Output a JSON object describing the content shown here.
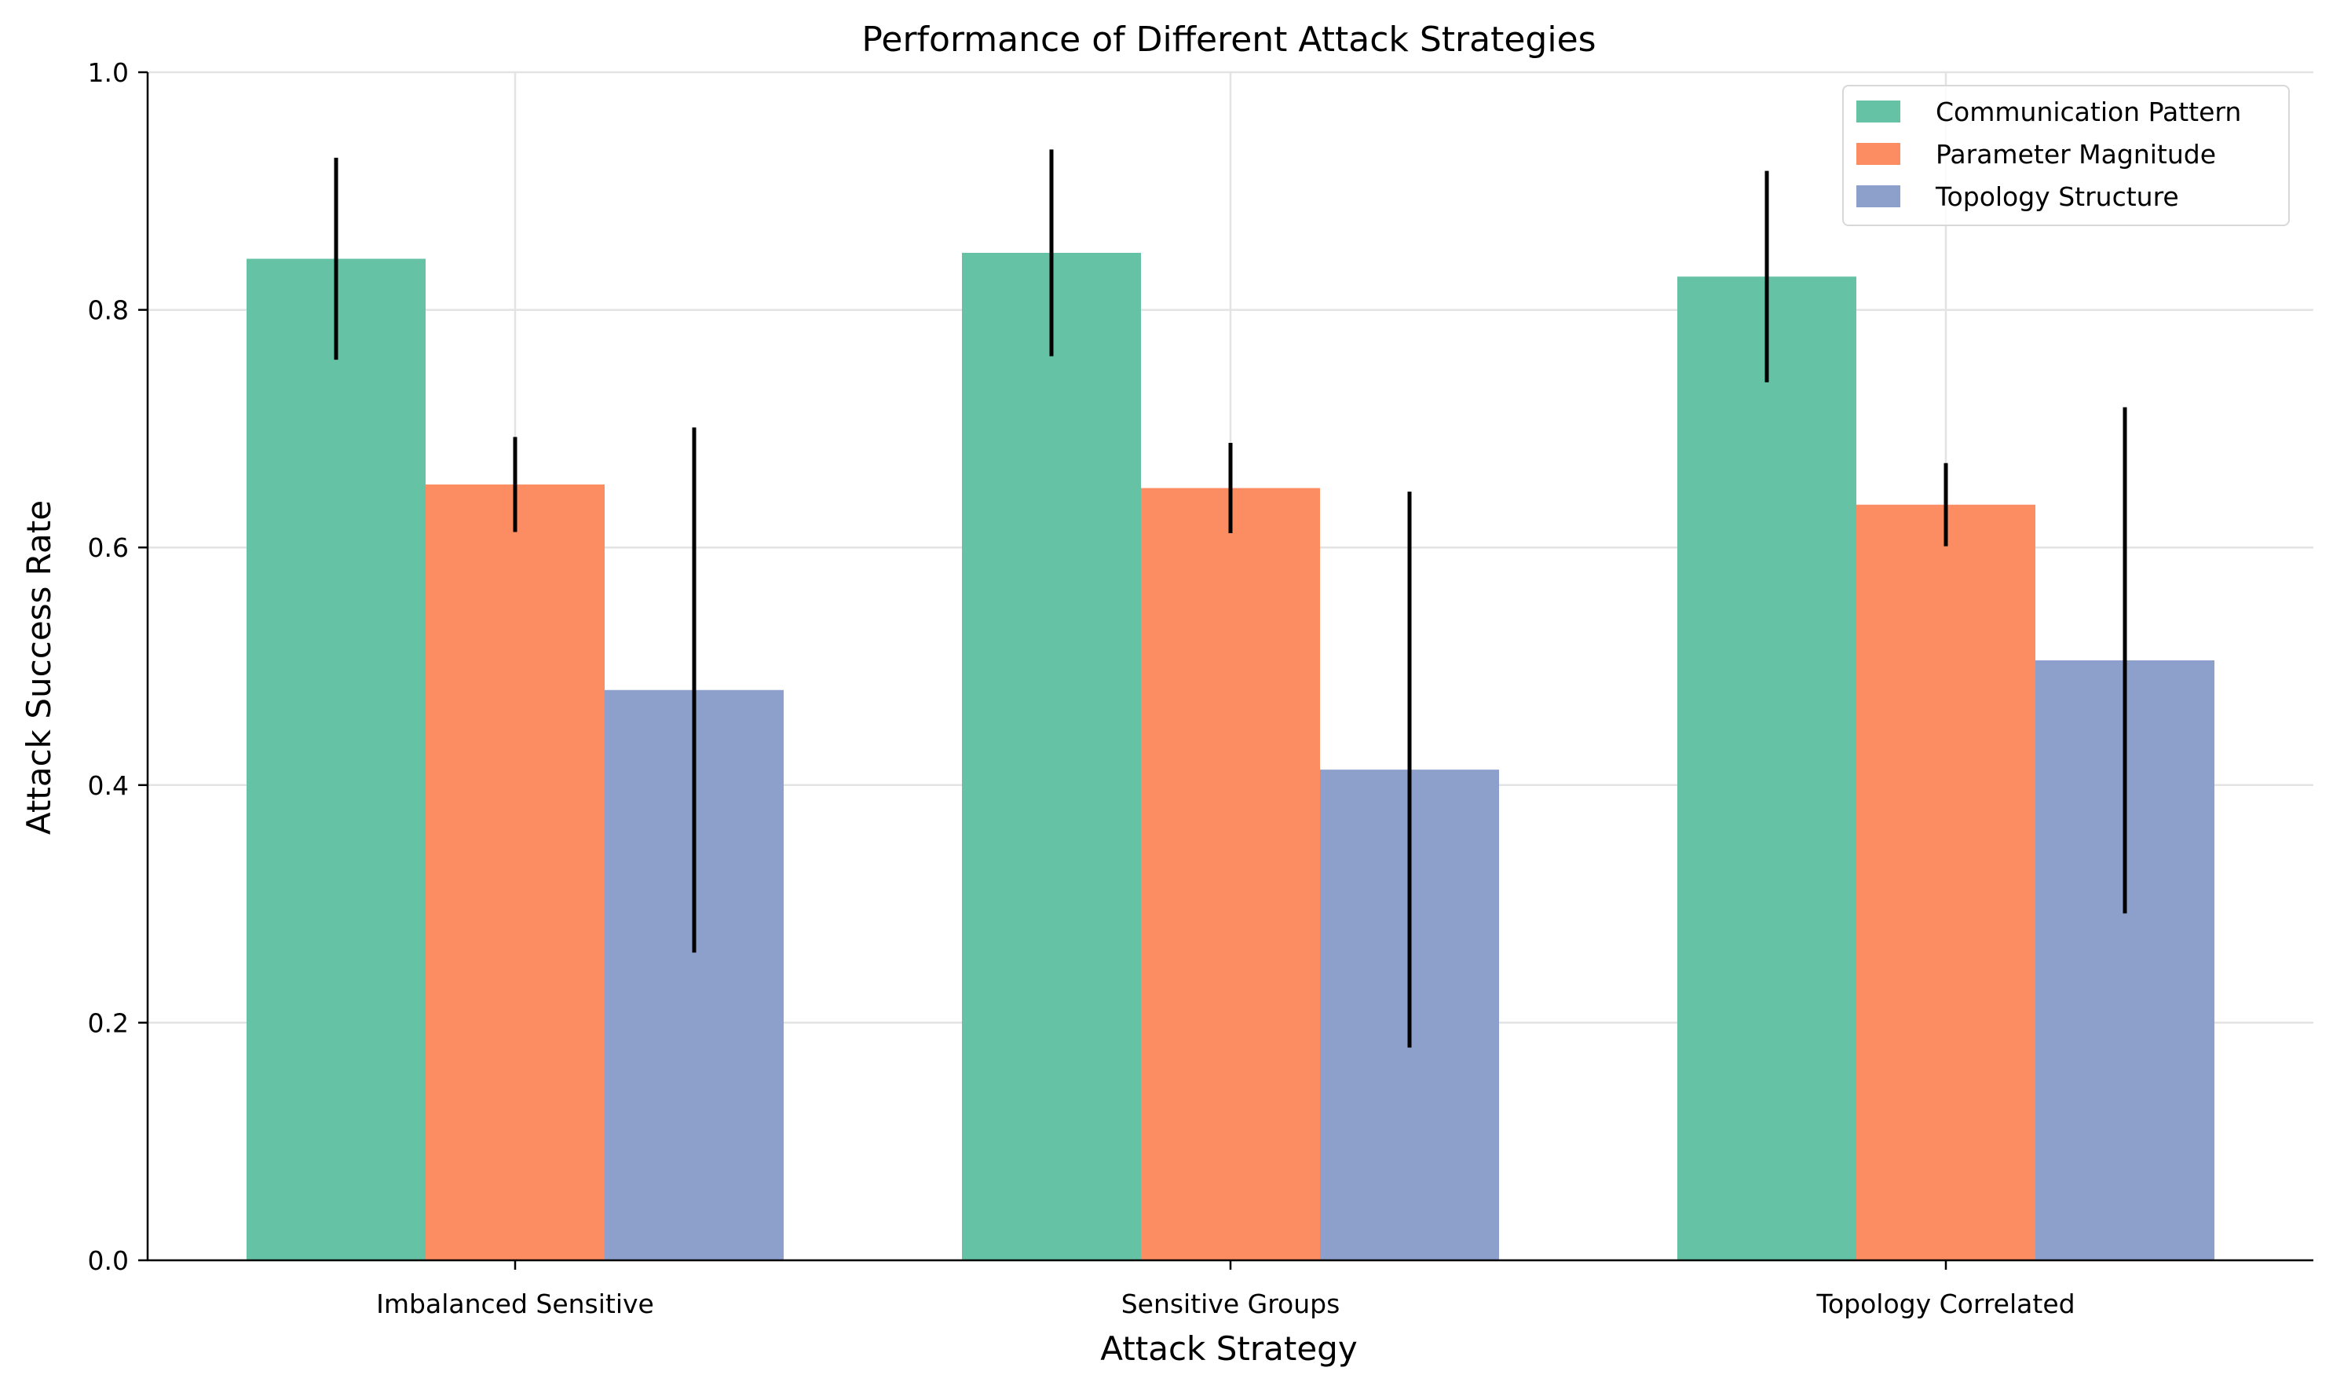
{
  "chart_data": {
    "type": "bar",
    "title": "Performance of Different Attack Strategies",
    "xlabel": "Attack Strategy",
    "ylabel": "Attack Success Rate",
    "categories": [
      "Imbalanced Sensitive",
      "Sensitive Groups",
      "Topology Correlated"
    ],
    "series": [
      {
        "name": "Communication Pattern",
        "color": "#66c2a5",
        "values": [
          0.843,
          0.848,
          0.828
        ],
        "errors": [
          0.085,
          0.087,
          0.089
        ]
      },
      {
        "name": "Parameter Magnitude",
        "color": "#fc8d62",
        "values": [
          0.653,
          0.65,
          0.636
        ],
        "errors": [
          0.04,
          0.038,
          0.035
        ]
      },
      {
        "name": "Topology Structure",
        "color": "#8da0cb",
        "values": [
          0.48,
          0.413,
          0.505
        ],
        "errors": [
          0.221,
          0.234,
          0.213
        ]
      }
    ],
    "ylim": [
      0,
      1.0
    ],
    "yticks": [
      "0.0",
      "0.2",
      "0.4",
      "0.6",
      "0.8",
      "1.0"
    ],
    "grid": true,
    "legend_position": "top-right"
  }
}
